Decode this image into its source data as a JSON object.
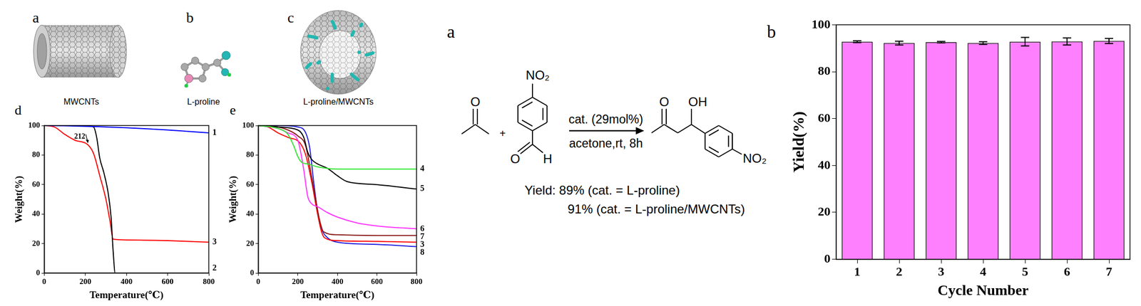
{
  "chart_data": [
    {
      "type": "line",
      "panel": "d",
      "xlabel": "Temperature(℃)",
      "ylabel": "Weight(%)",
      "xlim": [
        0,
        800
      ],
      "xticks": [
        0,
        200,
        400,
        600,
        800
      ],
      "ylim": [
        0,
        100
      ],
      "yticks": [
        0,
        20,
        40,
        60,
        80,
        100
      ],
      "grid": false,
      "series": [
        {
          "name": "1",
          "color": "#0000ff",
          "x": [
            0,
            100,
            200,
            300,
            400,
            500,
            600,
            700,
            800
          ],
          "values": [
            100,
            99.8,
            99.5,
            99,
            98.5,
            97.8,
            97,
            96,
            95
          ]
        },
        {
          "name": "2",
          "color": "#000000",
          "x": [
            0,
            100,
            200,
            240,
            255,
            270,
            290,
            310,
            325,
            335,
            345,
            400,
            600,
            800
          ],
          "values": [
            100,
            100,
            100,
            99,
            92,
            78,
            68,
            55,
            38,
            15,
            0,
            0,
            0,
            0
          ]
        },
        {
          "name": "3",
          "color": "#ff0000",
          "x": [
            0,
            50,
            100,
            150,
            212,
            240,
            270,
            300,
            320,
            335,
            400,
            600,
            800
          ],
          "values": [
            100,
            99,
            94,
            90,
            87,
            81,
            66,
            50,
            35,
            23,
            22.5,
            22,
            21
          ]
        }
      ],
      "annotations": [
        {
          "text": "212",
          "x": 212,
          "y": 87
        }
      ]
    },
    {
      "type": "line",
      "panel": "e",
      "xlabel": "Temperature(℃)",
      "ylabel": "Weight(%)",
      "xlim": [
        0,
        800
      ],
      "xticks": [
        0,
        200,
        400,
        600,
        800
      ],
      "ylim": [
        0,
        100
      ],
      "yticks": [
        0,
        20,
        40,
        60,
        80,
        100
      ],
      "grid": false,
      "series": [
        {
          "name": "4",
          "color": "#33e633",
          "x": [
            0,
            100,
            150,
            180,
            200,
            220,
            250,
            300,
            400,
            600,
            800
          ],
          "values": [
            100,
            98,
            94,
            86,
            79,
            75,
            74,
            72,
            70.5,
            70.5,
            70.5
          ]
        },
        {
          "name": "5",
          "color": "#000000",
          "x": [
            0,
            100,
            200,
            230,
            250,
            270,
            300,
            350,
            400,
            450,
            600,
            800
          ],
          "values": [
            100,
            99,
            97,
            92,
            82,
            77,
            74,
            71,
            66,
            62,
            60,
            57
          ]
        },
        {
          "name": "6",
          "color": "#ff33ff",
          "x": [
            0,
            100,
            150,
            200,
            230,
            250,
            270,
            300,
            350,
            400,
            500,
            600,
            800
          ],
          "values": [
            100,
            98,
            95,
            90,
            70,
            52,
            47,
            45,
            41,
            38,
            34,
            32,
            30
          ]
        },
        {
          "name": "7",
          "color": "#8b1a1a",
          "x": [
            0,
            100,
            150,
            200,
            240,
            270,
            290,
            310,
            330,
            400,
            600,
            800
          ],
          "values": [
            100,
            99,
            97,
            93,
            86,
            65,
            50,
            36,
            28,
            26,
            25.5,
            25.5
          ]
        },
        {
          "name": "3",
          "color": "#ff0000",
          "x": [
            0,
            50,
            100,
            150,
            212,
            240,
            270,
            300,
            320,
            335,
            400,
            600,
            800
          ],
          "values": [
            100,
            99,
            95,
            92,
            88,
            80,
            62,
            40,
            28,
            24,
            22,
            21.5,
            21
          ]
        },
        {
          "name": "8",
          "color": "#2020e0",
          "x": [
            0,
            100,
            200,
            240,
            260,
            280,
            300,
            320,
            350,
            400,
            600,
            800
          ],
          "values": [
            100,
            100,
            99,
            95,
            85,
            62,
            42,
            30,
            24,
            21,
            19.5,
            18
          ]
        }
      ]
    },
    {
      "type": "bar",
      "panel": "b",
      "xlabel": "Cycle Number",
      "ylabel": "Yield(%)",
      "categories": [
        "1",
        "2",
        "3",
        "4",
        "5",
        "6",
        "7"
      ],
      "values": [
        92.8,
        92.2,
        92.6,
        92.2,
        92.8,
        92.9,
        93.1
      ],
      "errors": [
        0.4,
        0.8,
        0.3,
        0.6,
        1.8,
        1.5,
        1.1
      ],
      "color": "#ff80ff",
      "ylim": [
        0,
        100
      ],
      "yticks": [
        0,
        20,
        40,
        60,
        80,
        100
      ],
      "grid": false
    }
  ],
  "figure": {
    "images": [
      {
        "panel": "a",
        "caption": "MWCNTs"
      },
      {
        "panel": "b",
        "caption": "L-proline"
      },
      {
        "panel": "c",
        "caption": "L-proline/MWCNTs"
      }
    ],
    "scheme": {
      "panel": "a",
      "ketone_atom": "O",
      "plus": "+",
      "aldehyde_substituent": "NO₂",
      "aldehyde_atoms": [
        "O",
        "H"
      ],
      "above_arrow": "cat. (29mol%)",
      "below_arrow": "acetone,rt, 8h",
      "product_atoms": [
        "O",
        "OH"
      ],
      "product_substituent": "NO₂",
      "yields": [
        "Yield: 89% (cat. = L-proline)",
        "91% (cat. = L-proline/MWCNTs)"
      ]
    }
  }
}
